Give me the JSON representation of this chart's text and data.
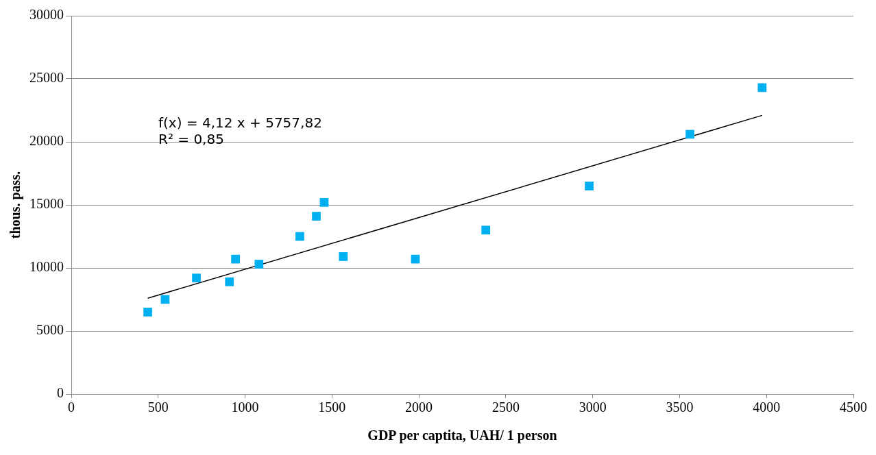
{
  "chart_data": {
    "type": "scatter",
    "xlabel": "GDP per captita, UAH/ 1 person",
    "ylabel": "thous. pass.",
    "xlim": [
      0,
      4500
    ],
    "xticks": [
      0,
      500,
      1000,
      1500,
      2000,
      2500,
      3000,
      3500,
      4000,
      4500
    ],
    "ylim": [
      0,
      30000
    ],
    "yticks": [
      0,
      5000,
      10000,
      15000,
      20000,
      25000,
      30000
    ],
    "grid": "y",
    "legend": false,
    "marker": "square",
    "annotations": [
      "f(x) = 4,12 x + 5757,82",
      "R² = 0,85"
    ],
    "series": [
      {
        "type": "scatter",
        "color": "#00b0f0",
        "x": [
          440,
          540,
          720,
          910,
          945,
          1080,
          1315,
          1410,
          1455,
          1565,
          1980,
          2385,
          2980,
          3560,
          3975
        ],
        "values": [
          6500,
          7500,
          9200,
          8900,
          10700,
          10300,
          12500,
          14100,
          15200,
          10900,
          10700,
          13000,
          16500,
          20600,
          24300
        ]
      },
      {
        "type": "line",
        "color": "#000000",
        "marker": "none",
        "line_style": "solid",
        "x": [
          440,
          3975
        ],
        "values": [
          7600,
          22100
        ]
      }
    ]
  }
}
